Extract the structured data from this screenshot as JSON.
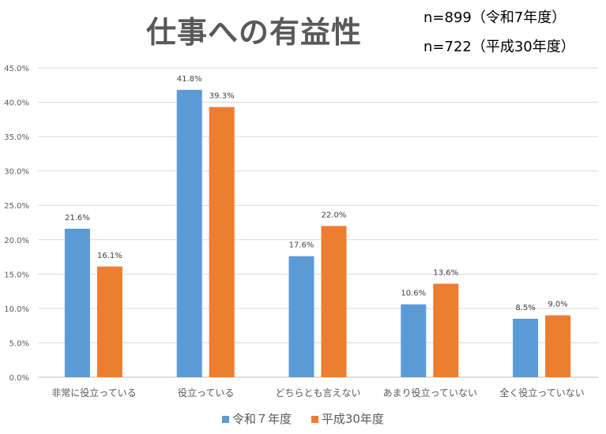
{
  "header": {
    "title": "仕事への有益性",
    "n1": "n=899（令和7年度）",
    "n2": "n=722（平成30年度）"
  },
  "chart_data": {
    "type": "bar",
    "title": "仕事への有益性",
    "categories": [
      "非常に役立っている",
      "役立っている",
      "どちらとも言えない",
      "あまり役立っていない",
      "全く役立っていない"
    ],
    "series": [
      {
        "name": "令和７年度",
        "color": "#5B9BD5",
        "values": [
          21.6,
          41.8,
          17.6,
          10.6,
          8.5
        ]
      },
      {
        "name": "平成30年度",
        "color": "#ED7D31",
        "values": [
          16.1,
          39.3,
          22.0,
          13.6,
          9.0
        ]
      }
    ],
    "ylim": [
      0,
      45
    ],
    "yticks": [
      0,
      5,
      10,
      15,
      20,
      25,
      30,
      35,
      40,
      45
    ],
    "grid": true,
    "legend": "bottom"
  }
}
